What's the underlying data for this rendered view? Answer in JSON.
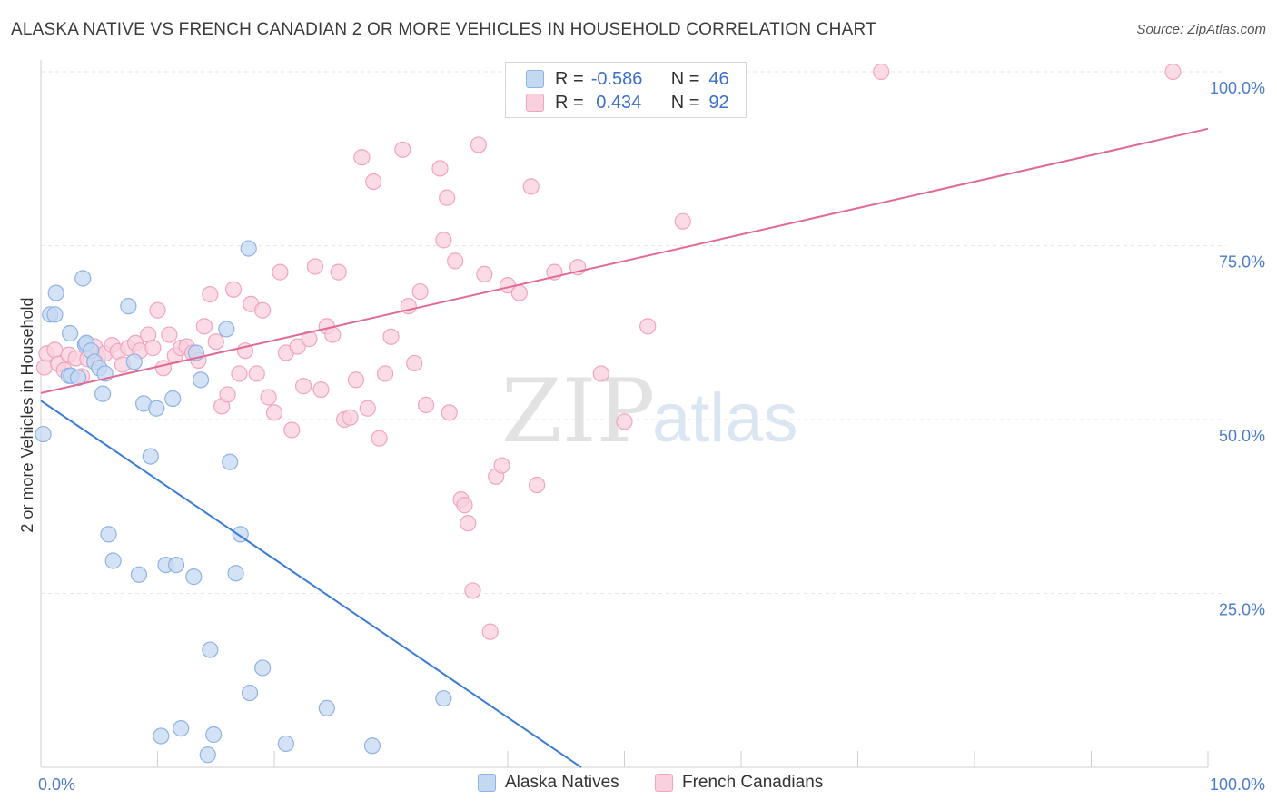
{
  "title": "ALASKA NATIVE VS FRENCH CANADIAN 2 OR MORE VEHICLES IN HOUSEHOLD CORRELATION CHART",
  "source": "Source: ZipAtlas.com",
  "watermark": {
    "zip": "ZIP",
    "atlas": "atlas"
  },
  "legend": {
    "rows": [
      {
        "r_label": "R =",
        "r_value": "-0.586",
        "n_label": "N =",
        "n_value": "46"
      },
      {
        "r_label": "R =",
        "r_value": " 0.434",
        "n_label": "N =",
        "n_value": "92"
      }
    ]
  },
  "colors": {
    "alaska_fill": "#c5d8f2",
    "alaska_stroke": "#8fb2e4",
    "alaska_line": "#3a7bd5",
    "french_fill": "#f9d0dd",
    "french_stroke": "#f0a5bd",
    "french_line": "#e06a96",
    "tick": "#4a7cc9",
    "grid": "#e6e6e6"
  },
  "chart_data": {
    "type": "scatter",
    "title": "ALASKA NATIVE VS FRENCH CANADIAN 2 OR MORE VEHICLES IN HOUSEHOLD CORRELATION CHART",
    "xlabel": "",
    "ylabel": "2 or more Vehicles in Household",
    "xlim": [
      0,
      100
    ],
    "ylim": [
      0,
      100
    ],
    "x_tick_labels": [
      "0.0%",
      "100.0%"
    ],
    "y_tick_labels": [
      "100.0%",
      "75.0%",
      "50.0%",
      "25.0%"
    ],
    "y_ticks": [
      100,
      75,
      50,
      25
    ],
    "grid": "horizontal dashed",
    "legend_position": "bottom-center",
    "series": [
      {
        "name": "Alaska Natives",
        "r": -0.586,
        "n": 46,
        "trend": [
          [
            0,
            52.7
          ],
          [
            46.3,
            0
          ]
        ],
        "points": [
          [
            0.2,
            47.9
          ],
          [
            0.8,
            65.1
          ],
          [
            1.2,
            65.1
          ],
          [
            1.3,
            68.2
          ],
          [
            2.4,
            56.3
          ],
          [
            2.5,
            62.4
          ],
          [
            2.6,
            56.3
          ],
          [
            3.2,
            56.0
          ],
          [
            3.6,
            70.3
          ],
          [
            3.8,
            60.8
          ],
          [
            3.9,
            61.0
          ],
          [
            4.3,
            59.9
          ],
          [
            4.6,
            58.3
          ],
          [
            5.0,
            57.4
          ],
          [
            5.3,
            53.7
          ],
          [
            5.5,
            56.6
          ],
          [
            5.8,
            33.5
          ],
          [
            6.2,
            29.7
          ],
          [
            7.5,
            66.3
          ],
          [
            8.0,
            58.3
          ],
          [
            8.4,
            27.7
          ],
          [
            8.8,
            52.3
          ],
          [
            9.4,
            44.7
          ],
          [
            9.9,
            51.6
          ],
          [
            10.3,
            4.5
          ],
          [
            10.7,
            29.1
          ],
          [
            11.3,
            53.0
          ],
          [
            11.6,
            29.1
          ],
          [
            12.0,
            5.6
          ],
          [
            13.1,
            27.4
          ],
          [
            13.3,
            59.6
          ],
          [
            13.7,
            55.7
          ],
          [
            14.3,
            1.8
          ],
          [
            14.5,
            16.9
          ],
          [
            14.8,
            4.7
          ],
          [
            15.9,
            63.0
          ],
          [
            16.2,
            43.9
          ],
          [
            16.7,
            27.9
          ],
          [
            17.1,
            33.5
          ],
          [
            17.8,
            74.6
          ],
          [
            17.9,
            10.7
          ],
          [
            19.0,
            14.3
          ],
          [
            21.0,
            3.4
          ],
          [
            24.5,
            8.5
          ],
          [
            28.4,
            3.1
          ],
          [
            34.5,
            9.9
          ]
        ]
      },
      {
        "name": "French Canadians",
        "r": 0.434,
        "n": 92,
        "trend": [
          [
            0,
            53.8
          ],
          [
            100,
            91.8
          ]
        ],
        "points": [
          [
            0.3,
            57.5
          ],
          [
            0.5,
            59.5
          ],
          [
            1.2,
            60.0
          ],
          [
            1.5,
            58.0
          ],
          [
            2.0,
            57.1
          ],
          [
            2.4,
            59.3
          ],
          [
            3.0,
            58.8
          ],
          [
            3.5,
            56.2
          ],
          [
            4.0,
            58.7
          ],
          [
            4.6,
            60.5
          ],
          [
            4.9,
            58.9
          ],
          [
            5.5,
            59.5
          ],
          [
            6.1,
            60.7
          ],
          [
            6.6,
            59.8
          ],
          [
            7.0,
            57.9
          ],
          [
            7.5,
            60.3
          ],
          [
            8.1,
            61.0
          ],
          [
            8.5,
            59.9
          ],
          [
            9.2,
            62.2
          ],
          [
            9.6,
            60.3
          ],
          [
            10.0,
            65.7
          ],
          [
            10.5,
            57.4
          ],
          [
            11.0,
            62.2
          ],
          [
            11.5,
            59.2
          ],
          [
            12.0,
            60.3
          ],
          [
            12.5,
            60.5
          ],
          [
            13.0,
            59.6
          ],
          [
            13.5,
            58.5
          ],
          [
            14.0,
            63.4
          ],
          [
            14.5,
            68.0
          ],
          [
            15.0,
            61.2
          ],
          [
            15.5,
            51.9
          ],
          [
            16.0,
            53.6
          ],
          [
            16.5,
            68.7
          ],
          [
            17.0,
            56.6
          ],
          [
            17.5,
            59.9
          ],
          [
            18.0,
            66.6
          ],
          [
            18.5,
            56.6
          ],
          [
            19.0,
            65.7
          ],
          [
            19.5,
            53.2
          ],
          [
            20.0,
            51.0
          ],
          [
            20.5,
            71.2
          ],
          [
            21.0,
            59.6
          ],
          [
            21.5,
            48.5
          ],
          [
            22.0,
            60.5
          ],
          [
            22.5,
            54.8
          ],
          [
            23.0,
            61.6
          ],
          [
            23.5,
            72.0
          ],
          [
            24.0,
            54.3
          ],
          [
            24.5,
            63.4
          ],
          [
            25.0,
            62.2
          ],
          [
            25.5,
            71.2
          ],
          [
            26.0,
            50.0
          ],
          [
            26.5,
            50.3
          ],
          [
            27.0,
            55.7
          ],
          [
            27.5,
            87.7
          ],
          [
            28.0,
            51.6
          ],
          [
            28.5,
            84.2
          ],
          [
            29.0,
            47.3
          ],
          [
            29.5,
            56.6
          ],
          [
            30.0,
            61.9
          ],
          [
            31.0,
            88.8
          ],
          [
            31.5,
            66.3
          ],
          [
            32.0,
            58.1
          ],
          [
            32.5,
            68.4
          ],
          [
            33.0,
            52.1
          ],
          [
            34.2,
            86.1
          ],
          [
            34.5,
            75.8
          ],
          [
            34.8,
            81.9
          ],
          [
            35.0,
            51.0
          ],
          [
            35.5,
            72.8
          ],
          [
            36.0,
            38.5
          ],
          [
            36.3,
            37.7
          ],
          [
            36.6,
            35.1
          ],
          [
            37.0,
            25.4
          ],
          [
            37.5,
            89.5
          ],
          [
            38.0,
            70.9
          ],
          [
            38.5,
            19.5
          ],
          [
            39.0,
            41.8
          ],
          [
            39.5,
            43.4
          ],
          [
            40.0,
            69.3
          ],
          [
            41.0,
            68.2
          ],
          [
            42.0,
            83.5
          ],
          [
            42.5,
            40.6
          ],
          [
            44.0,
            71.2
          ],
          [
            46.0,
            71.9
          ],
          [
            48.0,
            56.6
          ],
          [
            50.0,
            49.7
          ],
          [
            52.0,
            63.4
          ],
          [
            55.0,
            78.5
          ],
          [
            72.0,
            100.0
          ],
          [
            97.0,
            100.0
          ]
        ]
      }
    ]
  },
  "bottom_legend": {
    "alaska": "Alaska Natives",
    "french": "French Canadians"
  }
}
